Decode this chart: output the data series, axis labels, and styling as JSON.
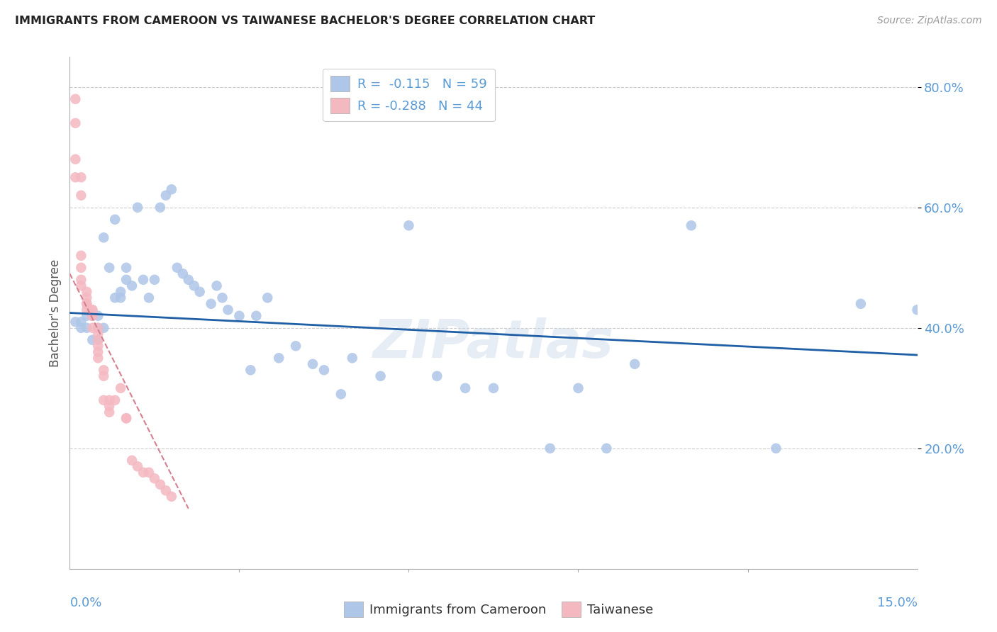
{
  "title": "IMMIGRANTS FROM CAMEROON VS TAIWANESE BACHELOR'S DEGREE CORRELATION CHART",
  "source": "Source: ZipAtlas.com",
  "ylabel_label": "Bachelor's Degree",
  "legend_entries": [
    {
      "label": "R =  -0.115   N = 59",
      "color": "#aec6e8"
    },
    {
      "label": "R = -0.288   N = 44",
      "color": "#f4b8c1"
    }
  ],
  "legend_labels_bottom": [
    "Immigrants from Cameroon",
    "Taiwanese"
  ],
  "watermark": "ZIPatlas",
  "blue_color": "#5b9bd5",
  "blue_scatter_color": "#aec6e8",
  "pink_scatter_color": "#f4b8c1",
  "trend_blue": "#1f5fa6",
  "trend_pink_dashed": "#d48090",
  "x_min": 0.0,
  "x_max": 0.15,
  "y_min": 0.0,
  "y_max": 0.85,
  "yticks": [
    0.2,
    0.4,
    0.6,
    0.8
  ],
  "ytick_labels": [
    "20.0%",
    "40.0%",
    "60.0%",
    "80.0%"
  ],
  "blue_trend_x0": 0.0,
  "blue_trend_y0": 0.425,
  "blue_trend_x1": 0.15,
  "blue_trend_y1": 0.355,
  "pink_trend_x0": 0.0,
  "pink_trend_y0": 0.49,
  "pink_trend_x1": 0.021,
  "pink_trend_y1": 0.1,
  "blue_points_x": [
    0.001,
    0.002,
    0.002,
    0.003,
    0.003,
    0.004,
    0.004,
    0.005,
    0.005,
    0.005,
    0.006,
    0.006,
    0.007,
    0.008,
    0.008,
    0.009,
    0.009,
    0.01,
    0.01,
    0.011,
    0.012,
    0.013,
    0.014,
    0.015,
    0.016,
    0.017,
    0.018,
    0.019,
    0.02,
    0.021,
    0.022,
    0.023,
    0.025,
    0.026,
    0.027,
    0.028,
    0.03,
    0.032,
    0.033,
    0.035,
    0.037,
    0.04,
    0.043,
    0.045,
    0.048,
    0.05,
    0.055,
    0.06,
    0.065,
    0.07,
    0.075,
    0.085,
    0.09,
    0.095,
    0.1,
    0.11,
    0.125,
    0.14,
    0.15
  ],
  "blue_points_y": [
    0.41,
    0.4,
    0.41,
    0.4,
    0.42,
    0.38,
    0.42,
    0.42,
    0.4,
    0.38,
    0.4,
    0.55,
    0.5,
    0.45,
    0.58,
    0.45,
    0.46,
    0.48,
    0.5,
    0.47,
    0.6,
    0.48,
    0.45,
    0.48,
    0.6,
    0.62,
    0.63,
    0.5,
    0.49,
    0.48,
    0.47,
    0.46,
    0.44,
    0.47,
    0.45,
    0.43,
    0.42,
    0.33,
    0.42,
    0.45,
    0.35,
    0.37,
    0.34,
    0.33,
    0.29,
    0.35,
    0.32,
    0.57,
    0.32,
    0.3,
    0.3,
    0.2,
    0.3,
    0.2,
    0.34,
    0.57,
    0.2,
    0.44,
    0.43
  ],
  "pink_points_x": [
    0.001,
    0.001,
    0.001,
    0.001,
    0.002,
    0.002,
    0.002,
    0.002,
    0.002,
    0.002,
    0.003,
    0.003,
    0.003,
    0.003,
    0.003,
    0.004,
    0.004,
    0.004,
    0.004,
    0.004,
    0.005,
    0.005,
    0.005,
    0.005,
    0.005,
    0.005,
    0.006,
    0.006,
    0.006,
    0.007,
    0.007,
    0.007,
    0.008,
    0.009,
    0.01,
    0.01,
    0.011,
    0.012,
    0.013,
    0.014,
    0.015,
    0.016,
    0.017,
    0.018
  ],
  "pink_points_y": [
    0.78,
    0.74,
    0.68,
    0.65,
    0.65,
    0.62,
    0.52,
    0.5,
    0.48,
    0.47,
    0.46,
    0.45,
    0.44,
    0.44,
    0.43,
    0.43,
    0.43,
    0.42,
    0.42,
    0.4,
    0.4,
    0.39,
    0.38,
    0.37,
    0.36,
    0.35,
    0.33,
    0.32,
    0.28,
    0.28,
    0.27,
    0.26,
    0.28,
    0.3,
    0.25,
    0.25,
    0.18,
    0.17,
    0.16,
    0.16,
    0.15,
    0.14,
    0.13,
    0.12
  ]
}
